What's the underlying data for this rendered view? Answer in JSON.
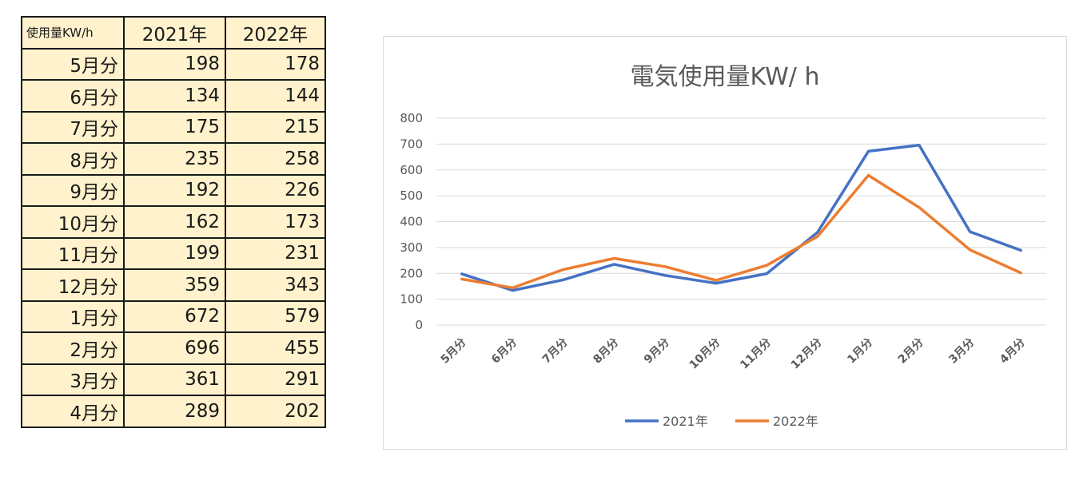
{
  "table": {
    "header": [
      "使用量KW/h",
      "2021年",
      "2022年"
    ],
    "rows": [
      [
        "5月分",
        "198",
        "178"
      ],
      [
        "6月分",
        "134",
        "144"
      ],
      [
        "7月分",
        "175",
        "215"
      ],
      [
        "8月分",
        "235",
        "258"
      ],
      [
        "9月分",
        "192",
        "226"
      ],
      [
        "10月分",
        "162",
        "173"
      ],
      [
        "11月分",
        "199",
        "231"
      ],
      [
        "12月分",
        "359",
        "343"
      ],
      [
        "1月分",
        "672",
        "579"
      ],
      [
        "2月分",
        "696",
        "455"
      ],
      [
        "3月分",
        "361",
        "291"
      ],
      [
        "4月分",
        "289",
        "202"
      ]
    ]
  },
  "chart_data": {
    "type": "line",
    "title": "電気使用量KW/ h",
    "xlabel": "",
    "ylabel": "",
    "categories": [
      "5月分",
      "6月分",
      "7月分",
      "8月分",
      "9月分",
      "10月分",
      "11月分",
      "12月分",
      "1月分",
      "2月分",
      "3月分",
      "4月分"
    ],
    "series": [
      {
        "name": "2021年",
        "color": "#4472c4",
        "values": [
          198,
          134,
          175,
          235,
          192,
          162,
          199,
          359,
          672,
          696,
          361,
          289
        ]
      },
      {
        "name": "2022年",
        "color": "#ed7d31",
        "values": [
          178,
          144,
          215,
          258,
          226,
          173,
          231,
          343,
          579,
          455,
          291,
          202
        ]
      }
    ],
    "ylim": [
      0,
      800
    ],
    "yticks": [
      "0",
      "100",
      "200",
      "300",
      "400",
      "500",
      "600",
      "700",
      "800"
    ],
    "grid": true,
    "legend_position": "bottom"
  }
}
